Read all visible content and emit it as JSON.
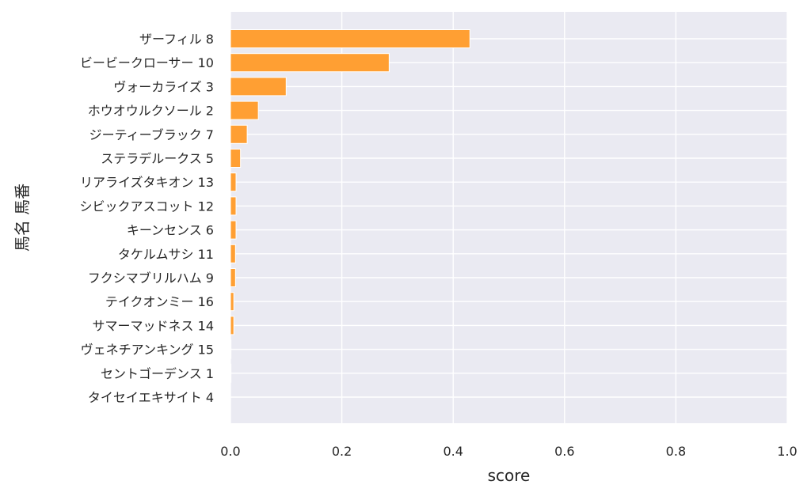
{
  "chart_data": {
    "type": "bar",
    "orientation": "horizontal",
    "xlabel": "score",
    "ylabel": "馬名 馬番",
    "xlim": [
      0.0,
      1.0
    ],
    "xticks": [
      "0.0",
      "0.2",
      "0.4",
      "0.6",
      "0.8",
      "1.0"
    ],
    "grid": true,
    "colors": {
      "bar": "#ff9f33",
      "bar_edge": "#ffffff",
      "plot_bg": "#eaeaf2",
      "grid": "#ffffff"
    },
    "categories": [
      "ザーフィル 8",
      "ビービークローサー 10",
      "ヴォーカライズ 3",
      "ホウオウルクソール 2",
      "ジーティーブラック 7",
      "ステラデルークス 5",
      "リアライズタキオン 13",
      "シビックアスコット 12",
      "キーンセンス 6",
      "タケルムサシ 11",
      "フクシマブリルハム 9",
      "テイクオンミー 16",
      "サマーマッドネス 14",
      "ヴェネチアンキング 15",
      "セントゴーデンス 1",
      "タイセイエキサイト 4"
    ],
    "values": [
      0.43,
      0.285,
      0.1,
      0.05,
      0.03,
      0.018,
      0.01,
      0.01,
      0.01,
      0.009,
      0.009,
      0.006,
      0.006,
      0.001,
      0.001,
      0.0
    ]
  }
}
